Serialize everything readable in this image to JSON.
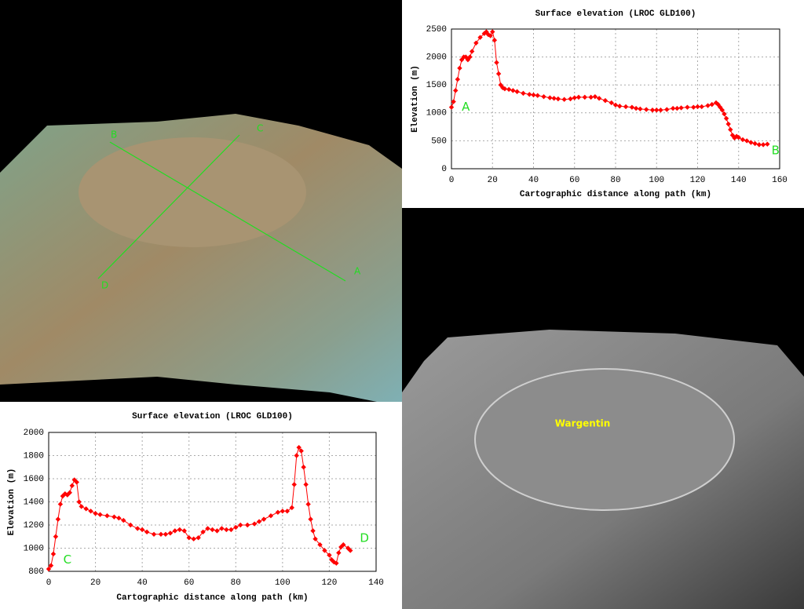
{
  "chart_data": [
    {
      "type": "line",
      "title": "Surface elevation (LROC GLD100)",
      "x_label": "Cartographic distance along path (km)",
      "y_label": "Elevation (m)",
      "x": [
        0,
        1,
        2,
        3,
        4,
        5,
        6,
        7,
        8,
        9,
        10,
        12,
        14,
        16,
        17,
        18,
        19,
        20,
        21,
        22,
        23,
        24,
        25,
        26,
        28,
        30,
        32,
        35,
        38,
        40,
        42,
        45,
        48,
        50,
        52,
        55,
        58,
        60,
        62,
        65,
        68,
        70,
        72,
        75,
        78,
        80,
        82,
        85,
        88,
        90,
        92,
        95,
        98,
        100,
        102,
        105,
        108,
        110,
        112,
        115,
        118,
        120,
        122,
        125,
        127,
        129,
        130,
        131,
        132,
        133,
        134,
        135,
        136,
        137,
        138,
        139,
        140,
        142,
        144,
        146,
        148,
        150,
        152,
        154
      ],
      "series": [
        {
          "color": "#ff0000",
          "values": [
            1100,
            1200,
            1400,
            1600,
            1800,
            1950,
            2000,
            2000,
            1950,
            2000,
            2100,
            2250,
            2350,
            2420,
            2450,
            2400,
            2380,
            2450,
            2300,
            1900,
            1700,
            1500,
            1450,
            1430,
            1420,
            1400,
            1380,
            1350,
            1330,
            1320,
            1310,
            1290,
            1270,
            1260,
            1250,
            1240,
            1250,
            1270,
            1280,
            1280,
            1280,
            1290,
            1260,
            1220,
            1180,
            1140,
            1120,
            1110,
            1100,
            1080,
            1070,
            1060,
            1050,
            1050,
            1050,
            1060,
            1080,
            1080,
            1090,
            1100,
            1100,
            1110,
            1110,
            1130,
            1150,
            1180,
            1150,
            1100,
            1050,
            980,
            900,
            800,
            700,
            600,
            550,
            580,
            560,
            520,
            500,
            470,
            450,
            430,
            430,
            440
          ]
        }
      ],
      "xlim": [
        0,
        160
      ],
      "xticks": [
        0,
        20,
        40,
        60,
        80,
        100,
        120,
        140,
        160
      ],
      "ylim": [
        0,
        2500
      ],
      "yticks": [
        0,
        500,
        1000,
        1500,
        2000,
        2500
      ],
      "grid": true,
      "annotations": [
        {
          "text": "A",
          "x": 7,
          "y": 1100,
          "color": "#22dd22"
        },
        {
          "text": "B",
          "x": 158,
          "y": 320,
          "color": "#22dd22"
        }
      ]
    },
    {
      "type": "line",
      "title": "Surface elevation (LROC GLD100)",
      "x_label": "Cartographic distance along path (km)",
      "y_label": "Elevation (m)",
      "x": [
        0,
        1,
        2,
        3,
        4,
        5,
        6,
        7,
        8,
        9,
        10,
        11,
        12,
        13,
        14,
        16,
        18,
        20,
        22,
        25,
        28,
        30,
        32,
        35,
        38,
        40,
        42,
        45,
        48,
        50,
        52,
        54,
        56,
        58,
        60,
        62,
        64,
        66,
        68,
        70,
        72,
        74,
        76,
        78,
        80,
        82,
        85,
        88,
        90,
        92,
        95,
        98,
        100,
        102,
        104,
        105,
        106,
        107,
        108,
        109,
        110,
        111,
        112,
        113,
        114,
        116,
        118,
        120,
        121,
        122,
        123,
        124,
        125,
        126,
        128,
        129
      ],
      "series": [
        {
          "color": "#ff0000",
          "values": [
            820,
            850,
            950,
            1100,
            1250,
            1380,
            1450,
            1470,
            1460,
            1480,
            1540,
            1590,
            1570,
            1400,
            1360,
            1340,
            1320,
            1300,
            1290,
            1280,
            1270,
            1260,
            1240,
            1200,
            1170,
            1160,
            1140,
            1120,
            1120,
            1120,
            1130,
            1150,
            1160,
            1150,
            1090,
            1080,
            1090,
            1140,
            1170,
            1160,
            1150,
            1170,
            1160,
            1160,
            1180,
            1200,
            1200,
            1210,
            1230,
            1250,
            1280,
            1310,
            1320,
            1320,
            1350,
            1550,
            1800,
            1870,
            1840,
            1700,
            1550,
            1380,
            1250,
            1150,
            1080,
            1030,
            980,
            940,
            900,
            880,
            870,
            960,
            1010,
            1030,
            1000,
            980
          ]
        }
      ],
      "xlim": [
        0,
        140
      ],
      "xticks": [
        0,
        20,
        40,
        60,
        80,
        100,
        120,
        140
      ],
      "ylim": [
        800,
        2000
      ],
      "yticks": [
        800,
        1000,
        1200,
        1400,
        1600,
        1800,
        2000
      ],
      "grid": true,
      "annotations": [
        {
          "text": "C",
          "x": 8,
          "y": 900,
          "color": "#22dd22"
        },
        {
          "text": "D",
          "x": 135,
          "y": 1085,
          "color": "#22dd22"
        }
      ]
    }
  ],
  "terrain_view": {
    "markers": [
      "A",
      "B",
      "C",
      "D"
    ]
  },
  "crater_view": {
    "label": "Wargentin"
  }
}
